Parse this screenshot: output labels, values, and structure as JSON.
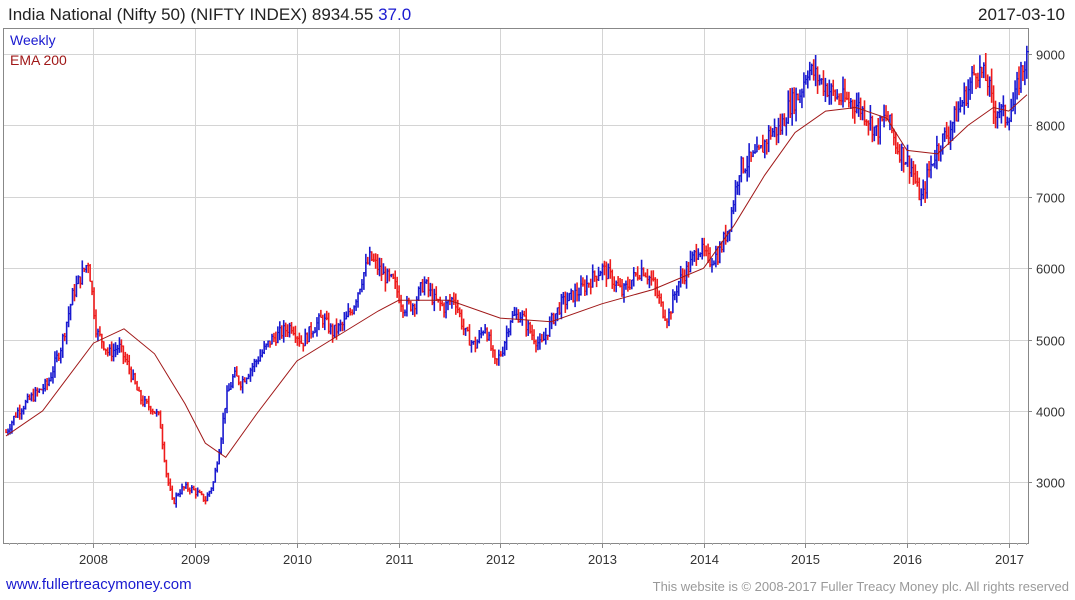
{
  "header": {
    "title": "India National (Nifty 50) (NIFTY INDEX) 8934.55",
    "change": "37.0",
    "date": "2017-03-10"
  },
  "footer": {
    "site_link": "www.fullertreacymoney.com",
    "copyright": "This website is © 2008-2017 Fuller Treacy Money plc. All rights reserved"
  },
  "colors": {
    "up": "#1a1ad0",
    "down": "#ee1c1c",
    "ema": "#a01818",
    "grid": "#d4d4d4",
    "link": "#1a1ad0"
  },
  "chart_data": {
    "type": "line",
    "subtype": "weekly bars with moving average",
    "legend": [
      "Weekly",
      "EMA 200"
    ],
    "legend_position": "top-left",
    "x_range": [
      2007.12,
      2017.19
    ],
    "y_range": [
      2150,
      9350
    ],
    "x_ticks": [
      2008,
      2009,
      2010,
      2011,
      2012,
      2013,
      2014,
      2015,
      2016,
      2017
    ],
    "x_tick_labels": [
      "2008",
      "2009",
      "2010",
      "2011",
      "2012",
      "2013",
      "2014",
      "2015",
      "2016",
      "2017"
    ],
    "y_ticks": [
      3000,
      4000,
      5000,
      6000,
      7000,
      8000,
      9000
    ],
    "y_tick_labels": [
      "3000",
      "4000",
      "5000",
      "6000",
      "7000",
      "8000",
      "9000"
    ],
    "grid": true,
    "y_axis_side": "right",
    "series": [
      {
        "name": "Weekly",
        "x": [
          2007.14,
          2007.25,
          2007.4,
          2007.55,
          2007.68,
          2007.8,
          2007.88,
          2007.95,
          2008.03,
          2008.08,
          2008.15,
          2008.25,
          2008.35,
          2008.45,
          2008.5,
          2008.57,
          2008.65,
          2008.72,
          2008.78,
          2008.83,
          2008.88,
          2008.95,
          2009.02,
          2009.1,
          2009.18,
          2009.25,
          2009.3,
          2009.38,
          2009.45,
          2009.55,
          2009.65,
          2009.75,
          2009.85,
          2009.95,
          2010.05,
          2010.15,
          2010.25,
          2010.35,
          2010.45,
          2010.55,
          2010.65,
          2010.72,
          2010.8,
          2010.85,
          2010.95,
          2011.05,
          2011.15,
          2011.25,
          2011.35,
          2011.45,
          2011.55,
          2011.65,
          2011.75,
          2011.85,
          2011.95,
          2012.02,
          2012.1,
          2012.2,
          2012.3,
          2012.4,
          2012.5,
          2012.6,
          2012.7,
          2012.8,
          2012.9,
          2013.0,
          2013.1,
          2013.2,
          2013.3,
          2013.4,
          2013.5,
          2013.6,
          2013.65,
          2013.75,
          2013.85,
          2013.95,
          2014.05,
          2014.15,
          2014.25,
          2014.35,
          2014.45,
          2014.55,
          2014.65,
          2014.75,
          2014.85,
          2014.95,
          2015.02,
          2015.1,
          2015.2,
          2015.3,
          2015.4,
          2015.5,
          2015.6,
          2015.7,
          2015.8,
          2015.9,
          2015.98,
          2016.05,
          2016.1,
          2016.15,
          2016.2,
          2016.3,
          2016.4,
          2016.5,
          2016.6,
          2016.68,
          2016.75,
          2016.8,
          2016.85,
          2016.9,
          2016.97,
          2017.05,
          2017.12,
          2017.18
        ],
        "y": [
          3700,
          3990,
          4200,
          4380,
          4900,
          5650,
          5900,
          6100,
          5100,
          5000,
          4800,
          4900,
          4600,
          4200,
          4100,
          4050,
          3900,
          3100,
          2700,
          2850,
          2920,
          2920,
          2850,
          2750,
          3000,
          3600,
          4150,
          4500,
          4400,
          4600,
          4800,
          5000,
          5100,
          5200,
          4950,
          5150,
          5300,
          5100,
          5200,
          5450,
          5900,
          6150,
          6000,
          5900,
          5800,
          5450,
          5500,
          5800,
          5550,
          5450,
          5600,
          5100,
          4900,
          5200,
          4650,
          4850,
          5300,
          5350,
          5100,
          4900,
          5250,
          5500,
          5600,
          5700,
          5850,
          6000,
          5850,
          5650,
          5850,
          6000,
          5800,
          5400,
          5300,
          5800,
          6000,
          6300,
          6100,
          6200,
          6600,
          7400,
          7500,
          7600,
          7900,
          7950,
          8300,
          8450,
          8800,
          8700,
          8550,
          8400,
          8350,
          8300,
          8150,
          7900,
          8150,
          7700,
          7550,
          7400,
          7100,
          6950,
          7300,
          7700,
          7900,
          8200,
          8500,
          8800,
          8700,
          8600,
          8200,
          8250,
          8100,
          8300,
          8750,
          8934.55
        ]
      },
      {
        "name": "EMA 200",
        "x": [
          2007.14,
          2007.5,
          2008.0,
          2008.3,
          2008.6,
          2008.9,
          2009.1,
          2009.3,
          2009.6,
          2010.0,
          2010.4,
          2010.8,
          2011.0,
          2011.5,
          2012.0,
          2012.5,
          2013.0,
          2013.5,
          2014.0,
          2014.3,
          2014.6,
          2014.9,
          2015.2,
          2015.5,
          2015.8,
          2016.0,
          2016.3,
          2016.6,
          2016.85,
          2017.0,
          2017.18
        ],
        "y": [
          3650,
          4000,
          4950,
          5150,
          4800,
          4100,
          3550,
          3350,
          3950,
          4700,
          5050,
          5400,
          5550,
          5550,
          5300,
          5250,
          5500,
          5700,
          6000,
          6600,
          7300,
          7900,
          8200,
          8250,
          8100,
          7650,
          7600,
          8000,
          8250,
          8200,
          8430
        ]
      }
    ]
  }
}
